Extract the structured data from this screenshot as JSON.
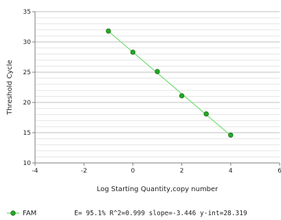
{
  "chart_data": {
    "type": "scatter",
    "title": "",
    "xlabel": "Log Starting Quantity,copy number",
    "ylabel": "Threshold Cycle",
    "xlim": [
      -4,
      6
    ],
    "ylim": [
      10,
      35
    ],
    "x_ticks": [
      "-4",
      "-2",
      "0",
      "2",
      "4",
      "6"
    ],
    "y_ticks": [
      "10",
      "15",
      "20",
      "25",
      "30",
      "35"
    ],
    "grid": true,
    "series": [
      {
        "name": "FAM",
        "color": "#22aa22",
        "line_color": "#7ee07e",
        "marker": "circle",
        "x": [
          -1,
          0,
          1,
          2,
          3,
          4
        ],
        "y": [
          31.8,
          28.3,
          25.1,
          21.1,
          18.1,
          14.6
        ]
      }
    ],
    "fit_line": {
      "x": [
        -1,
        4
      ],
      "y": [
        31.76,
        14.53
      ]
    },
    "legend": {
      "label": "FAM",
      "placement": "bottom-left"
    },
    "stats_text": "E= 95.1% R^2=0.999 slope=-3.446 y-int=28.319"
  }
}
